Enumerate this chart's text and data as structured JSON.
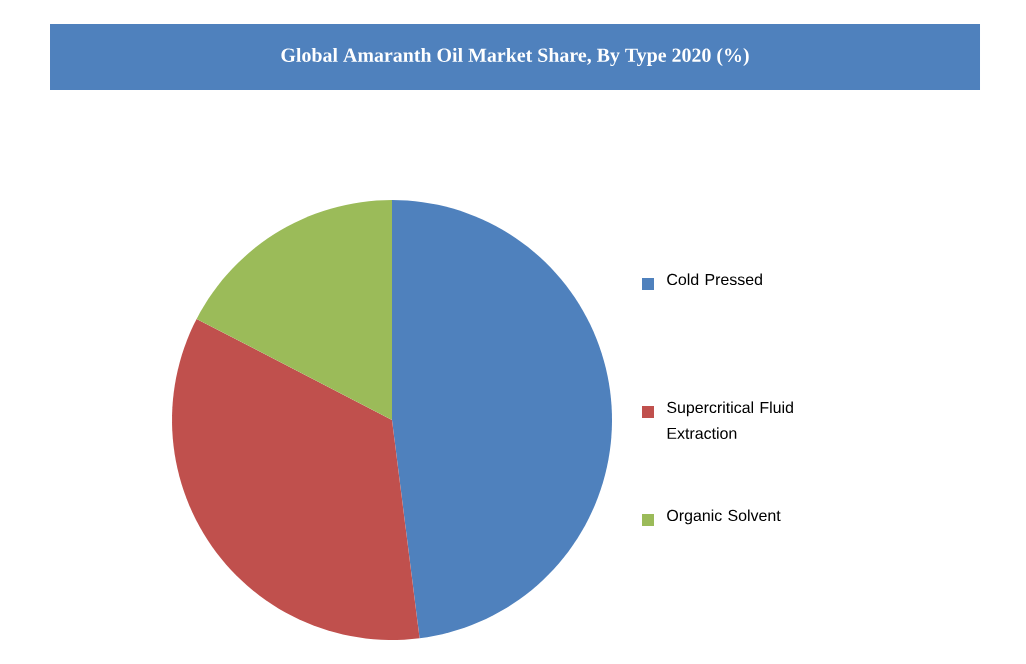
{
  "chart_data": {
    "type": "pie",
    "title": "Global Amaranth Oil Market Share, By Type 2020 (%)",
    "categories": [
      "Cold Pressed",
      "Supercritical Fluid Extraction",
      "Organic Solvent"
    ],
    "values": [
      48,
      34.6,
      17.4
    ],
    "colors": [
      "#4f81bd",
      "#c0504d",
      "#9bbb59"
    ],
    "legend": "right"
  }
}
